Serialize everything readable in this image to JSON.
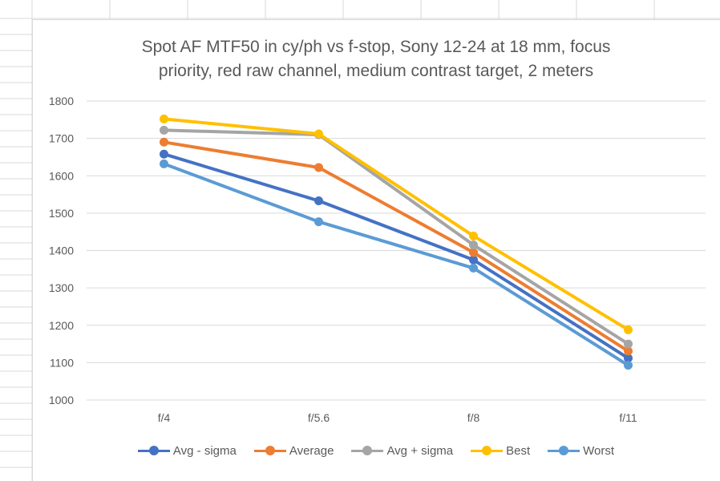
{
  "chart_data": {
    "type": "line",
    "title_line1": "Spot AF MTF50 in cy/ph vs f-stop, Sony 12-24 at 18 mm, focus",
    "title_line2": "priority, red raw channel, medium contrast target, 2 meters",
    "categories": [
      "f/4",
      "f/5.6",
      "f/8",
      "f/11"
    ],
    "ylim": [
      1000,
      1800
    ],
    "yticks": [
      1000,
      1100,
      1200,
      1300,
      1400,
      1500,
      1600,
      1700,
      1800
    ],
    "grid": true,
    "legend_position": "bottom",
    "series": [
      {
        "name": "Avg - sigma",
        "color": "#4472c4",
        "values": [
          1658,
          1533,
          1375,
          1112
        ]
      },
      {
        "name": "Average",
        "color": "#ed7d31",
        "values": [
          1690,
          1622,
          1395,
          1131
        ]
      },
      {
        "name": "Avg + sigma",
        "color": "#a5a5a5",
        "values": [
          1722,
          1710,
          1415,
          1150
        ]
      },
      {
        "name": "Best",
        "color": "#ffc000",
        "values": [
          1752,
          1712,
          1439,
          1188
        ]
      },
      {
        "name": "Worst",
        "color": "#5b9bd5",
        "values": [
          1632,
          1477,
          1353,
          1093
        ]
      }
    ]
  }
}
